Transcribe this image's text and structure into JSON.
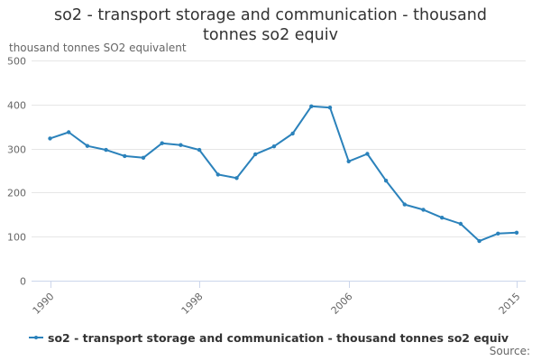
{
  "chart_data": {
    "type": "line",
    "title_lines": [
      "so2 - transport storage and communication - thousand",
      "tonnes so2 equiv"
    ],
    "ylabel": "thousand tonnes SO2 equivalent",
    "xlabel": "",
    "ylim": [
      0,
      500
    ],
    "yticks": [
      "0",
      "100",
      "200",
      "300",
      "400",
      "500"
    ],
    "xticks": [
      "1990",
      "1998",
      "2006",
      "2015"
    ],
    "grid": true,
    "legend_position": "bottom-left",
    "series": [
      {
        "name": "so2 - transport storage and communication - thousand tonnes so2 equiv",
        "color": "#2b82bb",
        "x": [
          1990,
          1991,
          1992,
          1993,
          1994,
          1995,
          1996,
          1997,
          1998,
          1999,
          2000,
          2001,
          2002,
          2003,
          2004,
          2005,
          2006,
          2007,
          2008,
          2009,
          2010,
          2011,
          2012,
          2013,
          2014,
          2015
        ],
        "values": [
          323,
          337,
          306,
          297,
          283,
          279,
          312,
          308,
          297,
          241,
          233,
          287,
          305,
          334,
          396,
          393,
          271,
          288,
          227,
          173,
          161,
          143,
          129,
          90,
          107,
          109
        ]
      }
    ]
  },
  "legend_label": "so2 - transport storage and communication - thousand tonnes so2 equiv",
  "source_label": "Source:"
}
